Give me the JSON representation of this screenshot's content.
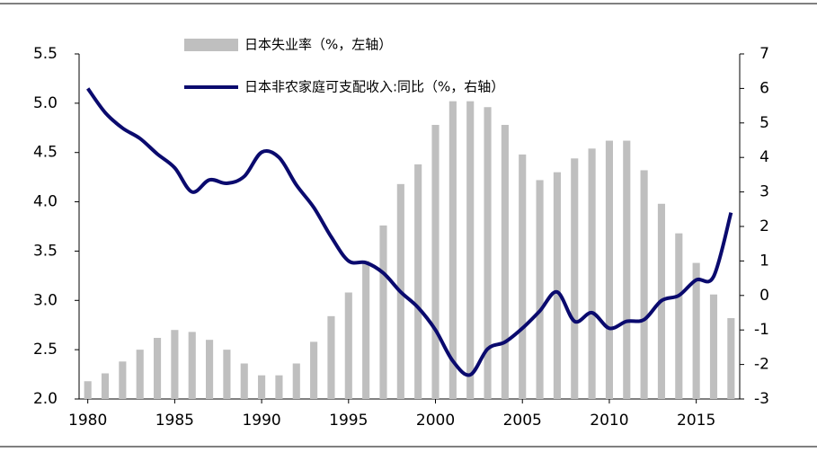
{
  "chart_data": {
    "type": "bar_line",
    "x": [
      1980,
      1981,
      1982,
      1983,
      1984,
      1985,
      1986,
      1987,
      1988,
      1989,
      1990,
      1991,
      1992,
      1993,
      1994,
      1995,
      1996,
      1997,
      1998,
      1999,
      2000,
      2001,
      2002,
      2003,
      2004,
      2005,
      2006,
      2007,
      2008,
      2009,
      2010,
      2011,
      2012,
      2013,
      2014,
      2015,
      2016,
      2017
    ],
    "xlim": [
      1979.5,
      2017.5
    ],
    "xticks": [
      1980,
      1985,
      1990,
      1995,
      2000,
      2005,
      2010,
      2015
    ],
    "series": [
      {
        "name": "日本失业率（%，左轴）",
        "type": "bar",
        "color": "#bfbfbf",
        "values": [
          2.18,
          2.26,
          2.38,
          2.5,
          2.62,
          2.7,
          2.68,
          2.6,
          2.5,
          2.36,
          2.24,
          2.24,
          2.36,
          2.58,
          2.84,
          3.08,
          3.4,
          3.76,
          4.18,
          4.38,
          4.78,
          5.02,
          5.02,
          4.96,
          4.78,
          4.48,
          4.22,
          4.3,
          4.44,
          4.54,
          4.62,
          4.62,
          4.32,
          3.98,
          3.68,
          3.38,
          3.06,
          2.82
        ]
      },
      {
        "name": "日本非农家庭可支配收入:同比（%，右轴）",
        "type": "line",
        "axis": "y2",
        "color": "#0a0a6e",
        "values": [
          6.0,
          5.3,
          4.85,
          4.55,
          4.1,
          3.7,
          3.0,
          3.35,
          3.25,
          3.45,
          4.15,
          4.0,
          3.2,
          2.55,
          1.7,
          1.0,
          0.95,
          0.65,
          0.1,
          -0.35,
          -1.0,
          -1.9,
          -2.3,
          -1.55,
          -1.35,
          -0.95,
          -0.45,
          0.1,
          -0.75,
          -0.5,
          -0.95,
          -0.75,
          -0.7,
          -0.15,
          0.0,
          0.45,
          0.55,
          2.4
        ]
      }
    ],
    "ylim": [
      2.0,
      5.5
    ],
    "yticks": [
      {
        "value": 2.0,
        "label": "2.0"
      },
      2.5,
      {
        "value": 3.0,
        "label": "3.0"
      },
      3.5,
      {
        "value": 4.0,
        "label": "4.0"
      },
      4.5,
      {
        "value": 5.0,
        "label": "5.0"
      },
      5.5
    ],
    "y2lim": [
      -3,
      7
    ],
    "y2ticks": [
      -3,
      -2,
      -1,
      0,
      1,
      2,
      3,
      4,
      5,
      6,
      7
    ],
    "legend": "top"
  }
}
